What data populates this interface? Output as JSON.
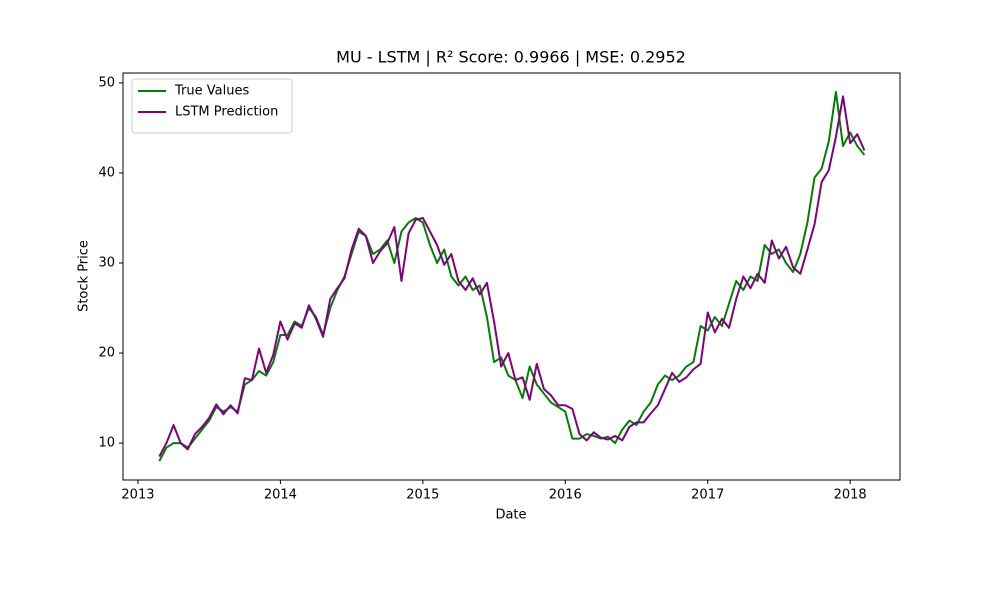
{
  "chart_data": {
    "type": "line",
    "title": "MU - LSTM | R² Score: 0.9966 | MSE: 0.2952",
    "xlabel": "Date",
    "ylabel": "Stock Price",
    "x": [
      2013.15,
      2013.2,
      2013.25,
      2013.3,
      2013.35,
      2013.4,
      2013.45,
      2013.5,
      2013.55,
      2013.6,
      2013.65,
      2013.7,
      2013.75,
      2013.8,
      2013.85,
      2013.9,
      2013.95,
      2014.0,
      2014.05,
      2014.1,
      2014.15,
      2014.2,
      2014.25,
      2014.3,
      2014.35,
      2014.4,
      2014.45,
      2014.5,
      2014.55,
      2014.6,
      2014.65,
      2014.7,
      2014.75,
      2014.8,
      2014.85,
      2014.9,
      2014.95,
      2015.0,
      2015.05,
      2015.1,
      2015.15,
      2015.2,
      2015.25,
      2015.3,
      2015.35,
      2015.4,
      2015.45,
      2015.5,
      2015.55,
      2015.6,
      2015.65,
      2015.7,
      2015.75,
      2015.8,
      2015.85,
      2015.9,
      2015.95,
      2016.0,
      2016.05,
      2016.1,
      2016.15,
      2016.2,
      2016.25,
      2016.3,
      2016.35,
      2016.4,
      2016.45,
      2016.5,
      2016.55,
      2016.6,
      2016.65,
      2016.7,
      2016.75,
      2016.8,
      2016.85,
      2016.9,
      2016.95,
      2017.0,
      2017.05,
      2017.1,
      2017.15,
      2017.2,
      2017.25,
      2017.3,
      2017.35,
      2017.4,
      2017.45,
      2017.5,
      2017.55,
      2017.6,
      2017.65,
      2017.7,
      2017.75,
      2017.8,
      2017.85,
      2017.9,
      2017.95,
      2018.0,
      2018.05,
      2018.1
    ],
    "series": [
      {
        "name": "True Values",
        "color": "#008000",
        "values": [
          8,
          9.5,
          10,
          10,
          9.5,
          10.5,
          11.5,
          12.5,
          14,
          13.5,
          14,
          13.5,
          16.5,
          17,
          18,
          17.5,
          19,
          22,
          22,
          23.5,
          23,
          25,
          24,
          22,
          25,
          27,
          28.5,
          31,
          33.5,
          33,
          31,
          31.5,
          32.5,
          30,
          33.5,
          34.5,
          35,
          34.5,
          32,
          30,
          31.5,
          28.5,
          27.5,
          28.5,
          27,
          27.5,
          24,
          19,
          19.5,
          17.5,
          17,
          15,
          18.5,
          16.5,
          15.5,
          14.5,
          14,
          13.5,
          10.5,
          10.5,
          11,
          10.8,
          10.5,
          10.7,
          10,
          11.5,
          12.5,
          12,
          13.5,
          14.5,
          16.5,
          17.5,
          17,
          17.5,
          18.5,
          19,
          23,
          22.5,
          24,
          23,
          25.5,
          28,
          27,
          28.5,
          28,
          32,
          31,
          31.5,
          30,
          29,
          31,
          34.5,
          39.5,
          40.5,
          43.5,
          49,
          43,
          44.5,
          43,
          42
        ]
      },
      {
        "name": "LSTM Prediction",
        "color": "#800080",
        "values": [
          8.5,
          10,
          12,
          10,
          9.3,
          11,
          11.8,
          12.8,
          14.3,
          13.2,
          14.2,
          13.3,
          17.2,
          17,
          20.5,
          17.8,
          19.8,
          23.5,
          21.5,
          23.3,
          22.8,
          25.3,
          23.8,
          21.8,
          26,
          27.2,
          28.3,
          31.5,
          33.8,
          33,
          30,
          31.3,
          32.2,
          34,
          28,
          33.3,
          34.8,
          35,
          33.5,
          32,
          29.8,
          31,
          28,
          27,
          28.3,
          26.5,
          27.8,
          23.5,
          18.5,
          20,
          17,
          17.3,
          14.8,
          18.8,
          16,
          15.3,
          14.2,
          14.2,
          13.8,
          11,
          10.3,
          11.2,
          10.6,
          10.4,
          10.8,
          10.3,
          11.8,
          12.3,
          12.3,
          13.3,
          14.2,
          16,
          17.8,
          16.8,
          17.3,
          18.2,
          18.8,
          24.5,
          22.3,
          23.8,
          22.8,
          26,
          28.5,
          27.2,
          28.8,
          27.8,
          32.5,
          30.5,
          31.8,
          29.5,
          28.8,
          31.5,
          34.3,
          39,
          40.3,
          44,
          48.5,
          43.3,
          44.3,
          42.5
        ]
      }
    ],
    "xlim": [
      2012.895,
      2018.35
    ],
    "xticks": [
      2013,
      2014,
      2015,
      2016,
      2017,
      2018
    ],
    "ylim": [
      5.9,
      51.1
    ],
    "yticks": [
      10,
      20,
      30,
      40,
      50
    ],
    "grid": false,
    "legend": "upper left"
  }
}
